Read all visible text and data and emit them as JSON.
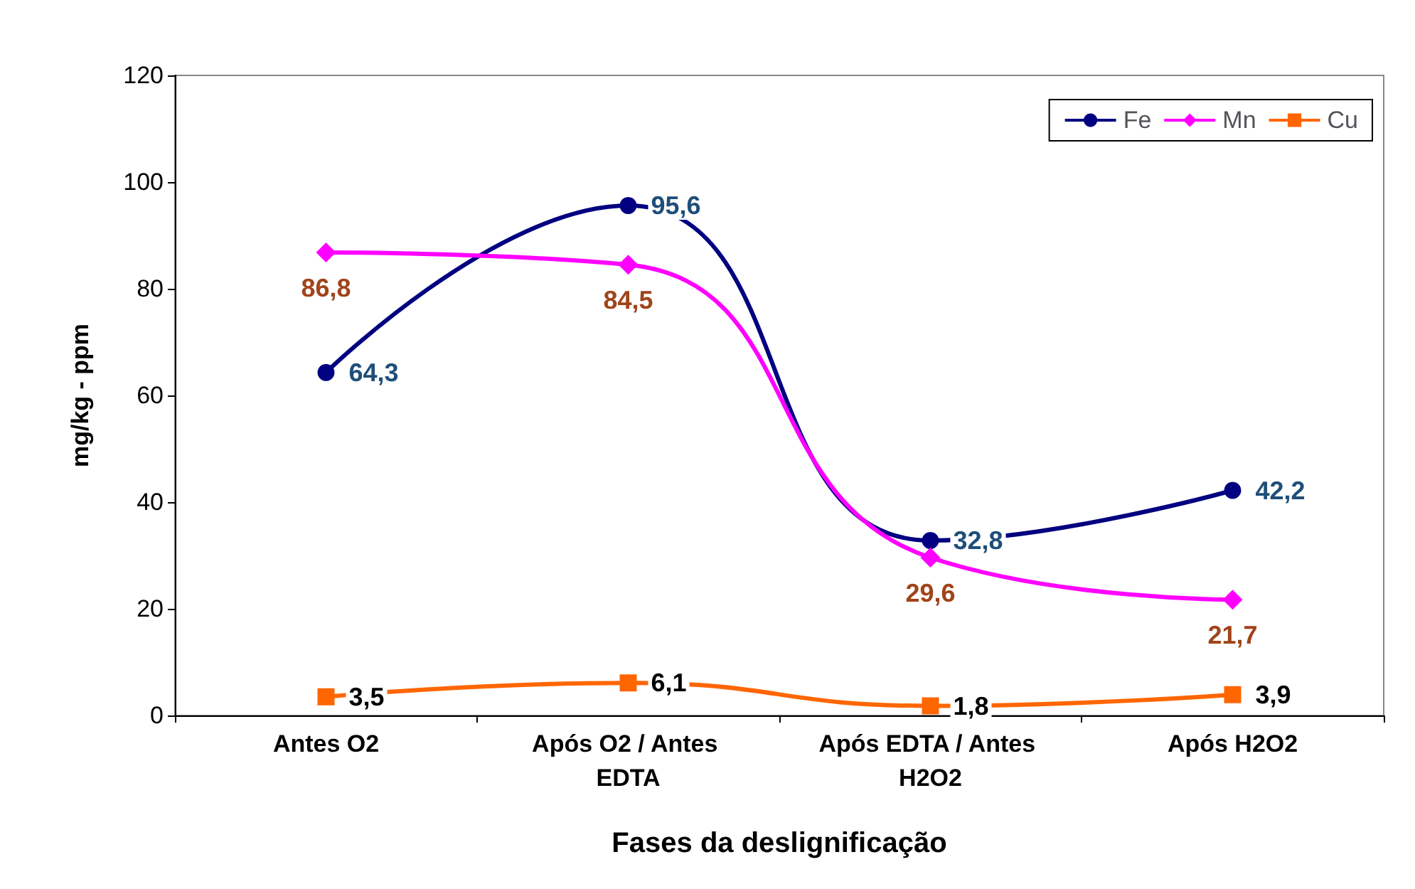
{
  "chart_data": {
    "type": "line",
    "xlabel": "Fases da deslignificação",
    "ylabel": "mg/kg - ppm",
    "categories": [
      "Antes O2",
      "Após O2 / Antes EDTA",
      "Após EDTA / Antes H2O2",
      "Após H2O2"
    ],
    "series": [
      {
        "name": "Fe",
        "color": "#000080",
        "marker": "circle",
        "values": [
          64.3,
          95.6,
          32.8,
          42.2
        ],
        "value_labels": [
          "64,3",
          "95,6",
          "32,8",
          "42,2"
        ]
      },
      {
        "name": "Mn",
        "color": "#ff00ff",
        "marker": "diamond",
        "values": [
          86.8,
          84.5,
          29.6,
          21.7
        ],
        "value_labels": [
          "86,8",
          "84,5",
          "29,6",
          "21,7"
        ]
      },
      {
        "name": "Cu",
        "color": "#ff6600",
        "marker": "square",
        "values": [
          3.5,
          6.1,
          1.8,
          3.9
        ],
        "value_labels": [
          "3,5",
          "6,1",
          "1,8",
          "3,9"
        ]
      }
    ],
    "ylim": [
      0,
      120
    ],
    "yticks": [
      0,
      20,
      40,
      60,
      80,
      100,
      120
    ],
    "grid": false,
    "legend": "top right",
    "line_style": "solid"
  }
}
